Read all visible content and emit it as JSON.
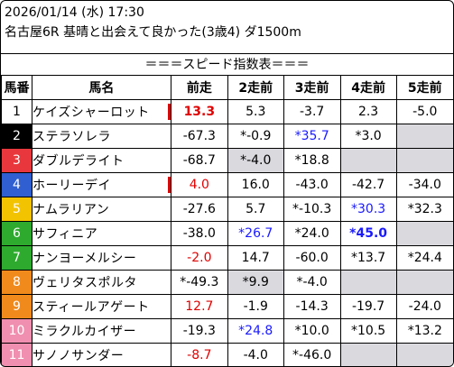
{
  "header": {
    "date_line": "2026/01/14 (水) 17:30",
    "race_line": "名古屋6R 基晴と出会えて良かった(3歳4) ダ1500m"
  },
  "banner": "＝＝＝スピード指数表＝＝＝",
  "columns": [
    "馬番",
    "馬名",
    "前走",
    "2走前",
    "3走前",
    "4走前",
    "5走前"
  ],
  "rows": [
    {
      "num": "1",
      "num_bg": "#ffffff",
      "num_fg": "#000000",
      "name": "ケイズシャーロット",
      "mark": true,
      "cells": [
        {
          "t": "13.3",
          "c": "red",
          "b": true
        },
        {
          "t": "5.3"
        },
        {
          "t": "-3.7"
        },
        {
          "t": "2.3"
        },
        {
          "t": "-5.0"
        }
      ]
    },
    {
      "num": "2",
      "num_bg": "#000000",
      "num_fg": "#ffffff",
      "name": "ステラソレラ",
      "mark": false,
      "cells": [
        {
          "t": "-67.3"
        },
        {
          "t": "*-0.9"
        },
        {
          "t": "*35.7",
          "c": "blue"
        },
        {
          "t": "*3.0"
        },
        {
          "t": "",
          "g": true
        }
      ]
    },
    {
      "num": "3",
      "num_bg": "#e8383d",
      "num_fg": "#ffffff",
      "name": "ダブルデライト",
      "mark": false,
      "cells": [
        {
          "t": "-68.7"
        },
        {
          "t": "*-4.0",
          "g": true
        },
        {
          "t": "*18.8"
        },
        {
          "t": "",
          "g": true
        },
        {
          "t": "",
          "g": true
        }
      ]
    },
    {
      "num": "4",
      "num_bg": "#2f5fd0",
      "num_fg": "#ffffff",
      "name": "ホーリーデイ",
      "mark": true,
      "cells": [
        {
          "t": "4.0",
          "c": "red"
        },
        {
          "t": "16.0"
        },
        {
          "t": "-43.0"
        },
        {
          "t": "-42.7"
        },
        {
          "t": "-34.0"
        }
      ]
    },
    {
      "num": "5",
      "num_bg": "#f2c300",
      "num_fg": "#ffffff",
      "name": "ナムラリアン",
      "mark": false,
      "cells": [
        {
          "t": "-27.6"
        },
        {
          "t": "5.7"
        },
        {
          "t": "*-10.3"
        },
        {
          "t": "*30.3",
          "c": "blue"
        },
        {
          "t": "*32.3"
        }
      ]
    },
    {
      "num": "6",
      "num_bg": "#2eaa2e",
      "num_fg": "#ffffff",
      "name": "サフィニア",
      "mark": false,
      "cells": [
        {
          "t": "-38.0"
        },
        {
          "t": "*26.7",
          "c": "blue"
        },
        {
          "t": "*24.0"
        },
        {
          "t": "*45.0",
          "c": "blue",
          "b": true
        },
        {
          "t": "",
          "g": true
        }
      ]
    },
    {
      "num": "7",
      "num_bg": "#2eaa2e",
      "num_fg": "#ffffff",
      "name": "ナンヨーメルシー",
      "mark": false,
      "cells": [
        {
          "t": "-2.0",
          "c": "red"
        },
        {
          "t": "14.7"
        },
        {
          "t": "-60.0"
        },
        {
          "t": "*13.7"
        },
        {
          "t": "*24.4"
        }
      ]
    },
    {
      "num": "8",
      "num_bg": "#f08a1c",
      "num_fg": "#ffffff",
      "name": "ヴェリタスポルタ",
      "mark": false,
      "cells": [
        {
          "t": "*-49.3"
        },
        {
          "t": "*9.9",
          "g": true
        },
        {
          "t": "*-4.0"
        },
        {
          "t": "",
          "g": true
        },
        {
          "t": "",
          "g": true
        }
      ]
    },
    {
      "num": "9",
      "num_bg": "#f08a1c",
      "num_fg": "#ffffff",
      "name": "スティールアゲート",
      "mark": false,
      "cells": [
        {
          "t": "12.7",
          "c": "red"
        },
        {
          "t": "-1.9"
        },
        {
          "t": "-14.3"
        },
        {
          "t": "-19.7"
        },
        {
          "t": "-24.0"
        }
      ]
    },
    {
      "num": "10",
      "num_bg": "#f08fb0",
      "num_fg": "#ffffff",
      "name": "ミラクルカイザー",
      "mark": false,
      "cells": [
        {
          "t": "-19.3"
        },
        {
          "t": "*24.8",
          "c": "blue"
        },
        {
          "t": "*10.0"
        },
        {
          "t": "*10.5"
        },
        {
          "t": "*13.2"
        }
      ]
    },
    {
      "num": "11",
      "num_bg": "#f08fb0",
      "num_fg": "#ffffff",
      "name": "サノノサンダー",
      "mark": false,
      "cells": [
        {
          "t": "-8.7",
          "c": "red"
        },
        {
          "t": "-4.0"
        },
        {
          "t": "*-46.0"
        },
        {
          "t": "",
          "g": true
        },
        {
          "t": "",
          "g": true
        }
      ]
    }
  ]
}
